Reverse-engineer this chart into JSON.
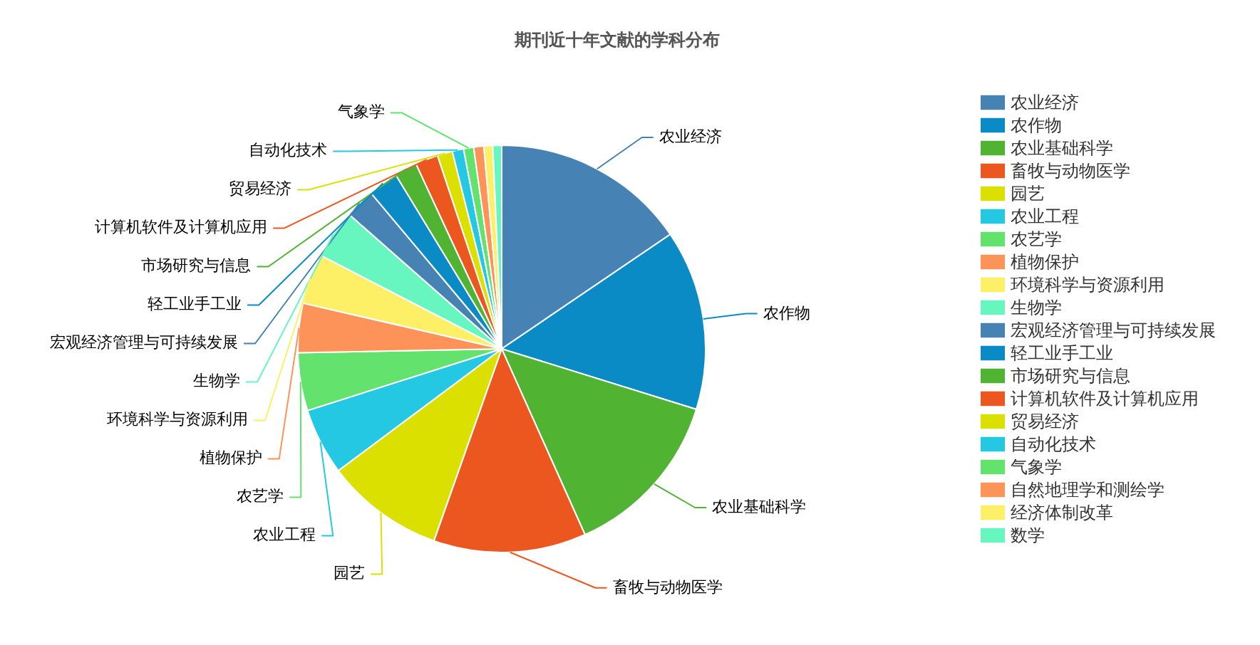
{
  "chart_data": {
    "type": "pie",
    "title": "期刊近十年文献的学科分布",
    "categories": [
      "农业经济",
      "农作物",
      "农业基础科学",
      "畜牧与动物医学",
      "园艺",
      "农业工程",
      "农艺学",
      "植物保护",
      "环境科学与资源利用",
      "生物学",
      "宏观经济管理与可持续发展",
      "轻工业手工业",
      "市场研究与信息",
      "计算机软件及计算机应用",
      "贸易经济",
      "自动化技术",
      "气象学",
      "自然地理学和测绘学",
      "经济体制改革",
      "数学"
    ],
    "values": [
      15.5,
      14.3,
      13.5,
      12.1,
      9.4,
      5.3,
      4.6,
      3.9,
      4.0,
      3.9,
      2.4,
      2.4,
      1.8,
      1.8,
      1.2,
      0.9,
      0.8,
      0.8,
      0.7,
      0.7
    ],
    "colors": [
      "#4682b4",
      "#0a8bc6",
      "#50b332",
      "#ec5720",
      "#dce000",
      "#25c8e3",
      "#63e36d",
      "#fd9359",
      "#fdf066",
      "#68f6c0",
      "#4682b4",
      "#0a8bc6",
      "#50b332",
      "#ec5720",
      "#dce000",
      "#25c8e3",
      "#63e36d",
      "#fd9359",
      "#fdf066",
      "#68f6c0"
    ],
    "legend": "right"
  }
}
